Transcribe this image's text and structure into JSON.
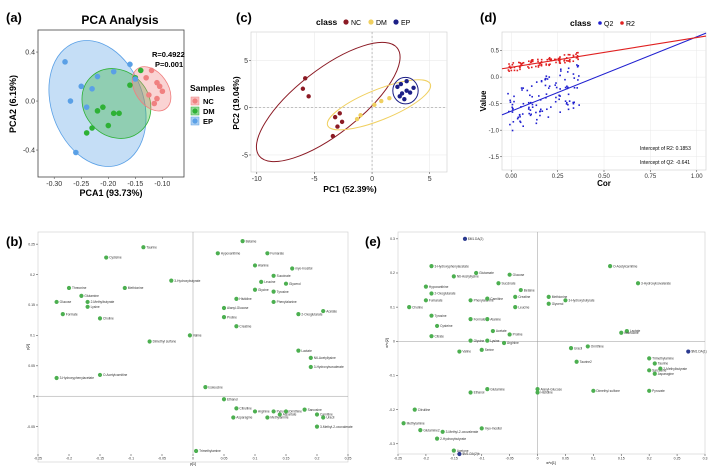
{
  "panels": [
    {
      "tag": "a",
      "label": "(a)"
    },
    {
      "tag": "b",
      "label": "(b)"
    },
    {
      "tag": "c",
      "label": "(c)"
    },
    {
      "tag": "d",
      "label": "(d)"
    },
    {
      "tag": "e",
      "label": "(e)"
    }
  ],
  "colors": {
    "nc": "#f08080",
    "dm": "#2eb135",
    "ep": "#5aa0e6",
    "c_nc": "#8b1a24",
    "c_dm": "#f0d060",
    "c_ep": "#1c1f86",
    "q2": "#2020d0",
    "r2": "#e02020",
    "loading": "#4caf50",
    "loading_dark": "#2b3a8f"
  },
  "chart_data": [
    {
      "id": "a",
      "type": "scatter",
      "title": "PCA Analysis",
      "xlabel": "PCA1 (93.73%)",
      "ylabel": "PCA2 (6.19%)",
      "xlim": [
        -0.33,
        -0.06
      ],
      "ylim": [
        -0.62,
        0.58
      ],
      "xticks": [
        -0.3,
        -0.25,
        -0.2,
        -0.15,
        -0.1
      ],
      "xtick_labels": [
        "-0.30",
        "-0.25",
        "-0.20",
        "-0.15",
        "-0.10"
      ],
      "yticks": [
        -0.4,
        0.0,
        0.4
      ],
      "ytick_labels": [
        "-0.4",
        "0.0",
        "0.4"
      ],
      "annotation": [
        "R=0.4922",
        "P=0.001"
      ],
      "legend_title": "Samples",
      "series": [
        {
          "name": "NC",
          "color_key": "nc",
          "x": [
            -0.11,
            -0.1,
            -0.11,
            -0.105,
            -0.13,
            -0.12,
            -0.125,
            -0.115
          ],
          "y": [
            0.15,
            0.08,
            0.02,
            0.12,
            0.19,
            0.25,
            0.05,
            -0.02
          ]
        },
        {
          "name": "DM",
          "color_key": "dm",
          "x": [
            -0.21,
            -0.2,
            -0.19,
            -0.22,
            -0.24,
            -0.15,
            -0.14,
            -0.16,
            -0.18,
            -0.23
          ],
          "y": [
            -0.05,
            -0.2,
            -0.1,
            -0.08,
            -0.26,
            0.19,
            0.25,
            0.13,
            -0.1,
            -0.22
          ]
        },
        {
          "name": "EP",
          "color_key": "ep",
          "x": [
            -0.28,
            -0.25,
            -0.27,
            -0.23,
            -0.22,
            -0.19,
            -0.16,
            -0.15,
            -0.26,
            -0.24
          ],
          "y": [
            0.32,
            0.12,
            0.0,
            0.1,
            0.2,
            0.24,
            0.3,
            0.18,
            -0.42,
            -0.05
          ]
        }
      ],
      "ellipses": [
        {
          "color_key": "ep",
          "cx": -0.22,
          "cy": -0.02,
          "rx": 0.085,
          "ry": 0.53,
          "rot": -20
        },
        {
          "color_key": "dm",
          "cx": -0.185,
          "cy": -0.02,
          "rx": 0.06,
          "ry": 0.3,
          "rot": -42
        },
        {
          "color_key": "nc",
          "cx": -0.12,
          "cy": 0.1,
          "rx": 0.03,
          "ry": 0.2,
          "rot": -35
        }
      ]
    },
    {
      "id": "c",
      "type": "scatter",
      "legend_title": "class",
      "xlabel": "PC1 (52.39%)",
      "ylabel": "PC2 (19.04%)",
      "xlim": [
        -10.5,
        6.5
      ],
      "ylim": [
        -6.8,
        8.0
      ],
      "xticks": [
        -10,
        -5,
        0,
        5
      ],
      "xtick_labels": [
        "-10",
        "-5",
        "0",
        "5"
      ],
      "yticks": [
        -5,
        0,
        5
      ],
      "ytick_labels": [
        "-5",
        "0",
        "5"
      ],
      "series": [
        {
          "name": "NC",
          "color_key": "c_nc",
          "x": [
            -5.8,
            -6.0,
            -5.5,
            -3.2,
            -3.0,
            -3.4,
            -2.6,
            -2.8
          ],
          "y": [
            3.1,
            2.0,
            1.2,
            -1.0,
            -2.0,
            -3.0,
            -1.5,
            -0.6
          ]
        },
        {
          "name": "DM",
          "color_key": "c_dm",
          "x": [
            -1.3,
            -1.0,
            0.2,
            0.8,
            1.5
          ],
          "y": [
            -1.2,
            -0.8,
            0.3,
            0.7,
            1.0
          ]
        },
        {
          "name": "EP",
          "color_key": "c_ep",
          "x": [
            2.2,
            2.6,
            3.0,
            2.4,
            2.8,
            3.3,
            3.6,
            2.5,
            3.0
          ],
          "y": [
            2.2,
            1.5,
            1.8,
            1.2,
            0.9,
            1.6,
            2.1,
            2.5,
            2.8
          ]
        }
      ],
      "ellipses": [
        {
          "color_key": "c_nc",
          "cx": -3.8,
          "cy": 0.6,
          "rx": 7.6,
          "ry": 3.4,
          "rot": -38
        },
        {
          "color_key": "c_dm",
          "cx": 0.6,
          "cy": 0.3,
          "rx": 4.8,
          "ry": 1.6,
          "rot": -22
        },
        {
          "color_key": "c_ep",
          "cx": 2.9,
          "cy": 1.8,
          "rx": 1.1,
          "ry": 1.4,
          "rot": 0
        }
      ]
    },
    {
      "id": "d",
      "type": "scatter",
      "legend_title": "class",
      "xlabel": "Cor",
      "ylabel": "Value",
      "xlim": [
        -0.05,
        1.05
      ],
      "ylim": [
        -1.75,
        0.85
      ],
      "xticks": [
        0.0,
        0.25,
        0.5,
        0.75,
        1.0
      ],
      "xtick_labels": [
        "0.00",
        "0.25",
        "0.50",
        "0.75",
        "1.00"
      ],
      "yticks": [
        -1.5,
        -1.0,
        -0.5,
        0.0,
        0.5
      ],
      "ytick_labels": [
        "-1.5",
        "-1.0",
        "-0.5",
        "0.0",
        "0.5"
      ],
      "series": [
        {
          "name": "Q2",
          "color_key": "q2",
          "intercept": -0.641,
          "slope": 1.4,
          "spread": 0.42
        },
        {
          "name": "R2",
          "color_key": "r2",
          "intercept": 0.1853,
          "slope": 0.56,
          "spread": 0.08
        }
      ],
      "x_clusters": [
        0.0,
        0.05,
        0.1,
        0.15,
        0.2,
        0.25,
        0.3,
        0.35
      ],
      "annotations": [
        "Intercept of R2: 0.1853",
        "Intercept of Q2: -0.641"
      ]
    },
    {
      "id": "b",
      "type": "scatter",
      "xlabel": "p[1]",
      "ylabel": "p[2]",
      "xlim": [
        -0.25,
        0.25
      ],
      "ylim": [
        -0.095,
        0.27
      ],
      "xticks": [
        -0.25,
        -0.2,
        -0.15,
        -0.1,
        -0.05,
        0,
        0.05,
        0.1,
        0.15,
        0.2,
        0.25
      ],
      "xtick_labels": [
        "-0.25",
        "-0.2",
        "-0.15",
        "-0.1",
        "-0.05",
        "0",
        "0.05",
        "0.1",
        "0.15",
        "0.2",
        "0.25"
      ],
      "yticks": [
        -0.05,
        0,
        0.05,
        0.1,
        0.15,
        0.2,
        0.25
      ],
      "ytick_labels": [
        "-0.05",
        "0",
        "0.05",
        "0.1",
        "0.15",
        "0.2",
        "0.25"
      ],
      "points": [
        {
          "name": "Taurine",
          "x": -0.08,
          "y": 0.245
        },
        {
          "name": "Cysteine",
          "x": -0.14,
          "y": 0.228
        },
        {
          "name": "Betaine",
          "x": 0.08,
          "y": 0.255
        },
        {
          "name": "Hypoxanthine",
          "x": 0.04,
          "y": 0.235
        },
        {
          "name": "Fumarate",
          "x": 0.12,
          "y": 0.235
        },
        {
          "name": "Alanine",
          "x": 0.1,
          "y": 0.215
        },
        {
          "name": "myo-Inositol",
          "x": 0.16,
          "y": 0.21
        },
        {
          "name": "3-Hydroxybutyrate",
          "x": -0.035,
          "y": 0.19
        },
        {
          "name": "Methionine",
          "x": -0.11,
          "y": 0.178
        },
        {
          "name": "Threonine",
          "x": -0.2,
          "y": 0.178
        },
        {
          "name": "Succinate",
          "x": 0.13,
          "y": 0.198
        },
        {
          "name": "Glycerol",
          "x": 0.15,
          "y": 0.185
        },
        {
          "name": "Leucine",
          "x": 0.11,
          "y": 0.188
        },
        {
          "name": "Glycine",
          "x": 0.1,
          "y": 0.175
        },
        {
          "name": "Tyrosine",
          "x": 0.13,
          "y": 0.172
        },
        {
          "name": "Glutamine",
          "x": -0.18,
          "y": 0.165
        },
        {
          "name": "Glucose",
          "x": -0.22,
          "y": 0.155
        },
        {
          "name": "2-Methylbutyrate",
          "x": -0.17,
          "y": 0.155
        },
        {
          "name": "Lysine",
          "x": -0.17,
          "y": 0.147
        },
        {
          "name": "Histidine",
          "x": 0.07,
          "y": 0.16
        },
        {
          "name": "Phenylalanine",
          "x": 0.13,
          "y": 0.155
        },
        {
          "name": "Alanyl-Glucose",
          "x": 0.05,
          "y": 0.145
        },
        {
          "name": "Choline",
          "x": -0.15,
          "y": 0.128
        },
        {
          "name": "Formate",
          "x": -0.21,
          "y": 0.135
        },
        {
          "name": "Acetate",
          "x": 0.21,
          "y": 0.14
        },
        {
          "name": "2-Oxoglutarate",
          "x": 0.17,
          "y": 0.135
        },
        {
          "name": "Proline",
          "x": 0.05,
          "y": 0.13
        },
        {
          "name": "Creatine",
          "x": 0.07,
          "y": 0.115
        },
        {
          "name": "Dimethyl sulfone",
          "x": -0.07,
          "y": 0.09
        },
        {
          "name": "Valine",
          "x": -0.005,
          "y": 0.1
        },
        {
          "name": "Lactate",
          "x": 0.17,
          "y": 0.075
        },
        {
          "name": "N6-Acetyllysine",
          "x": 0.19,
          "y": 0.063
        },
        {
          "name": "3-Hydroxyisovalerate",
          "x": 0.19,
          "y": 0.048
        },
        {
          "name": "O-Acetylcarnitine",
          "x": -0.15,
          "y": 0.035
        },
        {
          "name": "3-Hydroxyphenylacetate",
          "x": -0.22,
          "y": 0.03
        },
        {
          "name": "Isoleucine",
          "x": 0.02,
          "y": 0.015
        },
        {
          "name": "Ethanol",
          "x": 0.05,
          "y": -0.005
        },
        {
          "name": "Citrulline",
          "x": 0.07,
          "y": -0.02
        },
        {
          "name": "Arginine",
          "x": 0.1,
          "y": -0.025
        },
        {
          "name": "Pyruvate",
          "x": 0.13,
          "y": -0.025
        },
        {
          "name": "Ornithine",
          "x": 0.15,
          "y": -0.025
        },
        {
          "name": "Sarcosine",
          "x": 0.18,
          "y": -0.022
        },
        {
          "name": "Carnitine",
          "x": 0.2,
          "y": -0.03
        },
        {
          "name": "Uracil",
          "x": 0.21,
          "y": -0.035
        },
        {
          "name": "Asparagine",
          "x": 0.065,
          "y": -0.035
        },
        {
          "name": "3-Methyl-2-oxovalerate",
          "x": 0.2,
          "y": -0.05
        },
        {
          "name": "Methylamine",
          "x": 0.12,
          "y": -0.035
        },
        {
          "name": "Aspartate",
          "x": 0.14,
          "y": -0.03
        },
        {
          "name": "Trimethylamine",
          "x": 0.005,
          "y": -0.09
        }
      ]
    },
    {
      "id": "e",
      "type": "scatter",
      "xlabel": "w*c[1]",
      "ylabel": "w*c[2]",
      "xlim": [
        -0.25,
        0.3
      ],
      "ylim": [
        -0.33,
        0.32
      ],
      "xticks": [
        -0.25,
        -0.2,
        -0.15,
        -0.1,
        -0.05,
        0,
        0.05,
        0.1,
        0.15,
        0.2,
        0.25,
        0.3
      ],
      "xtick_labels": [
        "-0.25",
        "-0.2",
        "-0.15",
        "-0.1",
        "-0.05",
        "0",
        "0.05",
        "0.1",
        "0.15",
        "0.2",
        "0.25",
        "0.3"
      ],
      "yticks": [
        -0.3,
        -0.2,
        -0.1,
        0,
        0.1,
        0.2,
        0.3
      ],
      "ytick_labels": [
        "-0.3",
        "-0.2",
        "-0.1",
        "0",
        "0.1",
        "0.2",
        "0.3"
      ],
      "points": [
        {
          "name": "$M1.DA(2)",
          "x": -0.13,
          "y": 0.3,
          "dark": true
        },
        {
          "name": "O-Acetylcarnitine",
          "x": 0.13,
          "y": 0.22
        },
        {
          "name": "3-Hydroxyphenylacetate",
          "x": -0.19,
          "y": 0.22
        },
        {
          "name": "N6-Acetyllysine",
          "x": -0.15,
          "y": 0.19
        },
        {
          "name": "Glutamate",
          "x": -0.11,
          "y": 0.2
        },
        {
          "name": "Glucose",
          "x": -0.05,
          "y": 0.195
        },
        {
          "name": "3-Hydroxyisovalerate",
          "x": 0.18,
          "y": 0.17
        },
        {
          "name": "Hypoxanthine",
          "x": -0.2,
          "y": 0.16
        },
        {
          "name": "Succinate",
          "x": -0.07,
          "y": 0.17
        },
        {
          "name": "2-Oxoglutarate",
          "x": -0.19,
          "y": 0.14
        },
        {
          "name": "Betaine",
          "x": -0.03,
          "y": 0.15
        },
        {
          "name": "Fumarate",
          "x": -0.2,
          "y": 0.12
        },
        {
          "name": "Phenylalanine",
          "x": -0.12,
          "y": 0.12
        },
        {
          "name": "Carnitine",
          "x": -0.09,
          "y": 0.125
        },
        {
          "name": "Creatine",
          "x": -0.04,
          "y": 0.13
        },
        {
          "name": "Methionine",
          "x": 0.02,
          "y": 0.13
        },
        {
          "name": "3-Hydroxybutyrate",
          "x": 0.05,
          "y": 0.12
        },
        {
          "name": "Glycerol",
          "x": 0.02,
          "y": 0.11
        },
        {
          "name": "Choline",
          "x": -0.23,
          "y": 0.1
        },
        {
          "name": "Leucine",
          "x": -0.04,
          "y": 0.1
        },
        {
          "name": "Formate",
          "x": -0.12,
          "y": 0.065
        },
        {
          "name": "Alanine",
          "x": -0.09,
          "y": 0.065
        },
        {
          "name": "Cysteine",
          "x": -0.18,
          "y": 0.045
        },
        {
          "name": "Tyrosine",
          "x": -0.19,
          "y": 0.075
        },
        {
          "name": "Acetate",
          "x": -0.08,
          "y": 0.03
        },
        {
          "name": "Proline",
          "x": -0.05,
          "y": 0.02
        },
        {
          "name": "Citrate",
          "x": -0.19,
          "y": 0.015
        },
        {
          "name": "Glycine",
          "x": -0.12,
          "y": 0.002
        },
        {
          "name": "Lysine",
          "x": -0.09,
          "y": 0.002
        },
        {
          "name": "Arginine",
          "x": -0.06,
          "y": -0.005
        },
        {
          "name": "Serine",
          "x": -0.1,
          "y": -0.025
        },
        {
          "name": "Valine",
          "x": -0.14,
          "y": -0.03
        },
        {
          "name": "Lactate",
          "x": 0.16,
          "y": 0.03
        },
        {
          "name": "Isoleucine",
          "x": 0.15,
          "y": 0.025
        },
        {
          "name": "$M1.DA(1)",
          "x": 0.27,
          "y": -0.03,
          "dark": true
        },
        {
          "name": "Ornithine",
          "x": 0.09,
          "y": -0.015
        },
        {
          "name": "Uracil",
          "x": 0.06,
          "y": -0.02
        },
        {
          "name": "Trimethylamine",
          "x": 0.2,
          "y": -0.05
        },
        {
          "name": "Taurine",
          "x": 0.21,
          "y": -0.065
        },
        {
          "name": "Sarcosine",
          "x": 0.2,
          "y": -0.085
        },
        {
          "name": "Asparagine",
          "x": 0.21,
          "y": -0.095
        },
        {
          "name": "2-Methylbutyrate",
          "x": 0.22,
          "y": -0.08
        },
        {
          "name": "Dimethyl sulfone",
          "x": 0.1,
          "y": -0.145
        },
        {
          "name": "Pyruvate",
          "x": 0.2,
          "y": -0.145
        },
        {
          "name": "Histidine",
          "x": 0.0,
          "y": -0.15
        },
        {
          "name": "Glutamine",
          "x": -0.09,
          "y": -0.14
        },
        {
          "name": "Ethanol",
          "x": -0.12,
          "y": -0.15
        },
        {
          "name": "Alanyl-Glucose",
          "x": 0.0,
          "y": -0.14
        },
        {
          "name": "Taurine2",
          "x": 0.07,
          "y": -0.06
        },
        {
          "name": "Citrulline",
          "x": -0.22,
          "y": -0.2
        },
        {
          "name": "Methylamine",
          "x": -0.24,
          "y": -0.24
        },
        {
          "name": "Glutamine2",
          "x": -0.21,
          "y": -0.26
        },
        {
          "name": "3-Methyl-2-oxovalerate",
          "x": -0.17,
          "y": -0.265
        },
        {
          "name": "myo-Inositol",
          "x": -0.1,
          "y": -0.255
        },
        {
          "name": "2-Hydroxybutyrate",
          "x": -0.18,
          "y": -0.285
        },
        {
          "name": "Acetone",
          "x": -0.15,
          "y": -0.32
        },
        {
          "name": "$M1.DA(2)b",
          "x": -0.14,
          "y": -0.33,
          "dark": true
        }
      ]
    }
  ],
  "layout_text": {
    "a_legend_items": [
      "NC",
      "DM",
      "EP"
    ],
    "c_legend_items": [
      "NC",
      "DM",
      "EP"
    ],
    "d_legend_items": [
      "Q2",
      "R2"
    ]
  }
}
